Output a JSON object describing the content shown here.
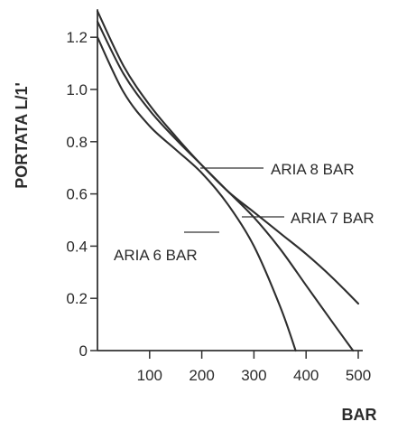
{
  "chart_data": {
    "type": "line",
    "title": "",
    "xlabel": "BAR",
    "ylabel": "PORTATA L/1'",
    "xlim": [
      0,
      500
    ],
    "ylim": [
      0,
      1.3
    ],
    "x_ticks": [
      100,
      200,
      300,
      400,
      500
    ],
    "y_ticks": [
      0,
      0.2,
      0.4,
      0.6,
      0.8,
      1.0,
      1.2
    ],
    "y_tick_labels": [
      "0",
      "0.2",
      "0.4",
      "0.6",
      "0.8",
      "1.0",
      "1.2"
    ],
    "x_tick_labels": [
      "100",
      "200",
      "300",
      "400",
      "500"
    ],
    "grid": false,
    "series": [
      {
        "name": "ARIA 8 BAR",
        "x": [
          0,
          50,
          100,
          150,
          200,
          250,
          300,
          350,
          400,
          450,
          500
        ],
        "y": [
          1.3,
          1.09,
          0.94,
          0.82,
          0.71,
          0.61,
          0.53,
          0.45,
          0.37,
          0.28,
          0.18
        ]
      },
      {
        "name": "ARIA 7 BAR",
        "x": [
          0,
          50,
          100,
          150,
          200,
          250,
          300,
          350,
          400,
          450,
          490
        ],
        "y": [
          1.26,
          1.06,
          0.92,
          0.81,
          0.71,
          0.61,
          0.51,
          0.39,
          0.25,
          0.11,
          0
        ]
      },
      {
        "name": "ARIA 6 BAR",
        "x": [
          0,
          50,
          100,
          150,
          200,
          250,
          300,
          350,
          380
        ],
        "y": [
          1.2,
          0.99,
          0.86,
          0.77,
          0.68,
          0.56,
          0.4,
          0.17,
          0
        ]
      }
    ]
  }
}
